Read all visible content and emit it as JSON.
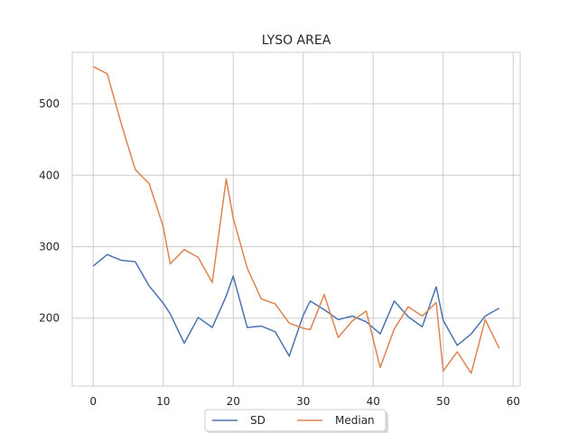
{
  "chart_data": {
    "type": "line",
    "title": "LYSO AREA",
    "xlabel": "",
    "ylabel": "",
    "xlim": [
      -3,
      61
    ],
    "ylim": [
      105,
      572
    ],
    "xticks": [
      0,
      10,
      20,
      30,
      40,
      50,
      60
    ],
    "yticks": [
      200,
      300,
      400,
      500
    ],
    "grid": true,
    "legend_position": "bottom-center",
    "x": [
      0,
      2,
      4,
      6,
      8,
      10,
      11,
      13,
      15,
      17,
      19,
      20,
      22,
      24,
      26,
      28,
      30,
      31,
      33,
      35,
      37,
      39,
      41,
      43,
      45,
      47,
      49,
      50,
      52,
      54,
      56,
      58
    ],
    "series": [
      {
        "name": "SD",
        "color": "#4c72b0",
        "values": [
          273,
          289,
          281,
          279,
          245,
          221,
          206,
          165,
          201,
          187,
          231,
          259,
          187,
          189,
          181,
          147,
          204,
          224,
          212,
          198,
          203,
          195,
          178,
          224,
          202,
          188,
          244,
          197,
          162,
          178,
          203,
          214
        ]
      },
      {
        "name": "Median",
        "color": "#dd8452",
        "values": [
          552,
          542,
          472,
          408,
          388,
          328,
          276,
          296,
          285,
          250,
          395,
          340,
          270,
          227,
          220,
          193,
          186,
          184,
          233,
          173,
          196,
          210,
          131,
          185,
          216,
          203,
          222,
          126,
          153,
          123,
          198,
          158
        ]
      }
    ]
  }
}
